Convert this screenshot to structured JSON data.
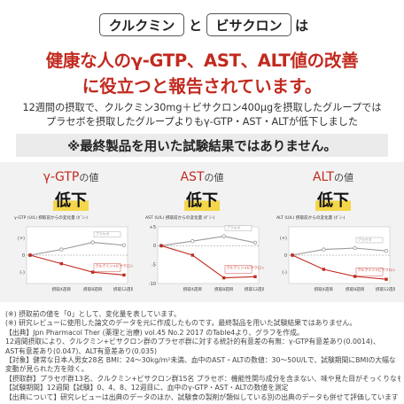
{
  "header": {
    "pill_curcumin": "クルクミン",
    "conj_to": "と",
    "pill_bisacron": "ビサクロン",
    "conj_wa": "は",
    "headline_line1": "健康な人のγ-GTP、AST、ALT値の改善",
    "headline_line2": "に役立つと報告されています。"
  },
  "summary": {
    "line1": "12週間の摂取で、クルクミン30mg＋ビサクロン400μgを摂取したグループでは",
    "line2": "プラセボを摂取したグループよりもγ-GTP・AST・ALTが低下しました"
  },
  "disclaimer": "※最終製品を用いた試験結果ではありません。",
  "cards": [
    {
      "metric": "γ-GTP",
      "suffix": "の値",
      "decline": "低下",
      "chart_title": "γ-GTP (U/L) 摂取前からの変化量 (ﾀﾞﾐｰ)",
      "legend_placebo": "プラセボ",
      "legend_active": "クルクミン+ビサクロン",
      "xlabels": [
        "摂取4週目",
        "摂取8週目",
        "摂取12週目"
      ]
    },
    {
      "metric": "AST",
      "suffix": "の値",
      "decline": "低下",
      "chart_title": "AST (U/L) 摂取前からの変化量 (ﾀﾞﾐｰ)",
      "legend_placebo": "プラセボ",
      "legend_active": "クルクミン+ビサクロン",
      "xlabels": [
        "摂取4週目",
        "摂取8週目",
        "摂取12週目"
      ]
    },
    {
      "metric": "ALT",
      "suffix": "の値",
      "decline": "低下",
      "chart_title": "ALT (U/L) 摂取前からの変化量 (ﾀﾞﾐｰ)",
      "legend_placebo": "プラセボ",
      "legend_active": "クルクミン+ビサクロン",
      "xlabels": [
        "摂取4週目",
        "摂取8週目",
        "摂取12週目"
      ]
    }
  ],
  "chart_data": [
    {
      "type": "line",
      "x": [
        "摂取前",
        "摂取4週目",
        "摂取8週目",
        "摂取12週目"
      ],
      "yticks": [
        "(+)",
        "0",
        "(-)"
      ],
      "series": [
        {
          "name": "プラセボ",
          "values": [
            0,
            0.4,
            0.9,
            0.7
          ]
        },
        {
          "name": "クルクミン+ビサクロン",
          "values": [
            0,
            -0.6,
            -1.2,
            -1.4
          ]
        }
      ],
      "ylim": [
        -2,
        2
      ]
    },
    {
      "type": "line",
      "x": [
        "摂取前",
        "摂取4週目",
        "摂取8週目",
        "摂取12週目"
      ],
      "yticks": [
        "+5",
        "0",
        "-5",
        "-10"
      ],
      "series": [
        {
          "name": "プラセボ",
          "values": [
            0,
            1.2,
            2.5,
            0.8
          ]
        },
        {
          "name": "クルクミン+ビサクロン",
          "values": [
            0,
            -2.5,
            -8.5,
            -8.2
          ]
        }
      ],
      "ylim": [
        -10,
        5
      ]
    },
    {
      "type": "line",
      "x": [
        "摂取前",
        "摂取4週目",
        "摂取8週目",
        "摂取12週目"
      ],
      "yticks": [
        "(+)",
        "0",
        "(-)"
      ],
      "series": [
        {
          "name": "プラセボ",
          "values": [
            0,
            0.4,
            0.5,
            0.3
          ]
        },
        {
          "name": "クルクミン+ビサクロン",
          "values": [
            0,
            -1.0,
            -1.5,
            -1.7
          ]
        }
      ],
      "ylim": [
        -2,
        2
      ]
    }
  ],
  "notes": [
    "(※) 摂取前の値を「0」として、変化量を表しています。",
    "(※) 研究レビューに使用した論文のデータを元に作成したものです。最終製品を用いた試験結果ではありません。",
    "【出典】Jpn Pharmacol Ther (薬理と治療) vol.45 No.2 2017 のTable4より、グラフを作成。",
    "12週間摂取により、クルクミン+ビサクロン群のプラセボ群に対する統計的有意差の有無：γ-GTP有意差あり(0.0014)、",
    "AST有意差あり(0.047)、ALT有意差あり(0.035)",
    "【対象】健常な日本人男女28名 BMI：24〜30kg/m²未満、血中のAST・ALTの数値：30〜50U/Lで、試験期間にBMIの大幅な",
    "変動が見られた方を除く。",
    "【摂取群】プラセボ群13名、クルクミン+ビサクロン群15名 プラセボ：機能性関与成分を含まない、味や見た目がそっくりなもの",
    "【試験期間】12週間【試験】0、4、8、12週目に、血中のγ-GTP・AST・ALTの数値を測定",
    "【出典について】研究レビューは出典のデータのほか、試験食の製剤が類似している別の出典のデータも併せて評価しています"
  ]
}
